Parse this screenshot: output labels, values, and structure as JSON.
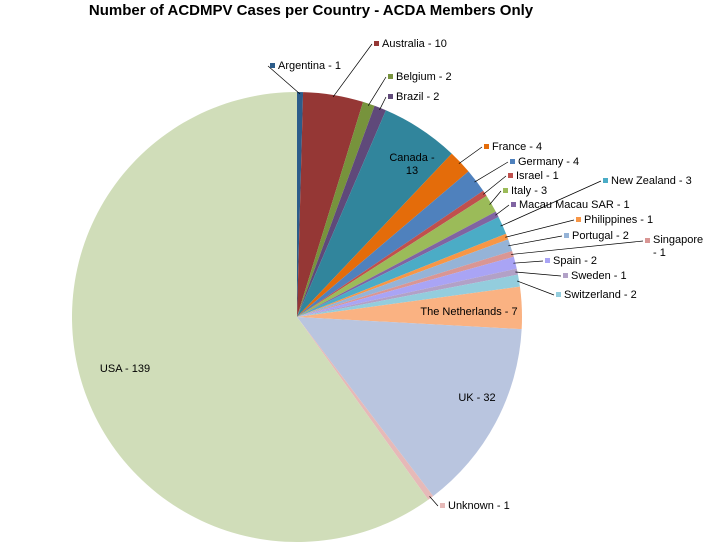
{
  "chart_data": {
    "type": "pie",
    "title": "Number of ACDMPV Cases per Country  - ACDA  Members Only",
    "categories": [
      "Argentina - 1",
      "Australia - 10",
      "Belgium - 2",
      "Brazil - 2",
      "Canada - 13",
      "France - 4",
      "Germany - 4",
      "Israel - 1",
      "Italy - 3",
      "Macau Macau SAR - 1",
      "New Zealand - 3",
      "Philippines - 1",
      "Portugal - 2",
      "Singapore - 1",
      "Spain - 2",
      "Sweden - 1",
      "Switzerland - 2",
      "The Netherlands - 7",
      "UK - 32",
      "Unknown - 1",
      "USA - 139"
    ],
    "values": [
      1,
      10,
      2,
      2,
      13,
      4,
      4,
      1,
      3,
      1,
      3,
      1,
      2,
      1,
      2,
      1,
      2,
      7,
      32,
      1,
      139
    ],
    "colors": [
      "#2c5c8a",
      "#953735",
      "#77933c",
      "#5f497a",
      "#31859c",
      "#e46c0a",
      "#4f81bd",
      "#c0504d",
      "#9bbb59",
      "#8064a2",
      "#4bacc6",
      "#f79646",
      "#95b3d7",
      "#d99694",
      "#a9a4f5",
      "#b2a1c7",
      "#93cddd",
      "#fab282",
      "#b9c5df",
      "#e6b9b8",
      "#d0ddb9"
    ]
  }
}
